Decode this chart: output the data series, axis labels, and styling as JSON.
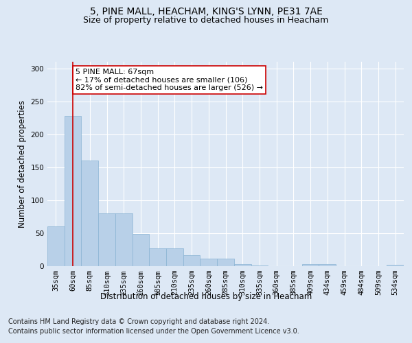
{
  "title_line1": "5, PINE MALL, HEACHAM, KING'S LYNN, PE31 7AE",
  "title_line2": "Size of property relative to detached houses in Heacham",
  "xlabel": "Distribution of detached houses by size in Heacham",
  "ylabel": "Number of detached properties",
  "categories": [
    "35sqm",
    "60sqm",
    "85sqm",
    "110sqm",
    "135sqm",
    "160sqm",
    "185sqm",
    "210sqm",
    "235sqm",
    "260sqm",
    "285sqm",
    "310sqm",
    "335sqm",
    "360sqm",
    "385sqm",
    "409sqm",
    "434sqm",
    "459sqm",
    "484sqm",
    "509sqm",
    "534sqm"
  ],
  "values": [
    60,
    228,
    160,
    80,
    80,
    48,
    27,
    27,
    16,
    11,
    11,
    3,
    1,
    0,
    0,
    3,
    3,
    0,
    0,
    0,
    2
  ],
  "bar_color": "#b8d0e8",
  "bar_edgecolor": "#8ab4d4",
  "property_bin_index": 1,
  "marker_line_color": "#cc0000",
  "annotation_text": "5 PINE MALL: 67sqm\n← 17% of detached houses are smaller (106)\n82% of semi-detached houses are larger (526) →",
  "annotation_box_edgecolor": "#cc0000",
  "ylim": [
    0,
    310
  ],
  "yticks": [
    0,
    50,
    100,
    150,
    200,
    250,
    300
  ],
  "footer_line1": "Contains HM Land Registry data © Crown copyright and database right 2024.",
  "footer_line2": "Contains public sector information licensed under the Open Government Licence v3.0.",
  "bg_color": "#dde8f5",
  "plot_bg_color": "#dde8f5",
  "title_fontsize": 10,
  "subtitle_fontsize": 9,
  "axis_label_fontsize": 8.5,
  "tick_fontsize": 7.5,
  "annotation_fontsize": 8,
  "footer_fontsize": 7
}
